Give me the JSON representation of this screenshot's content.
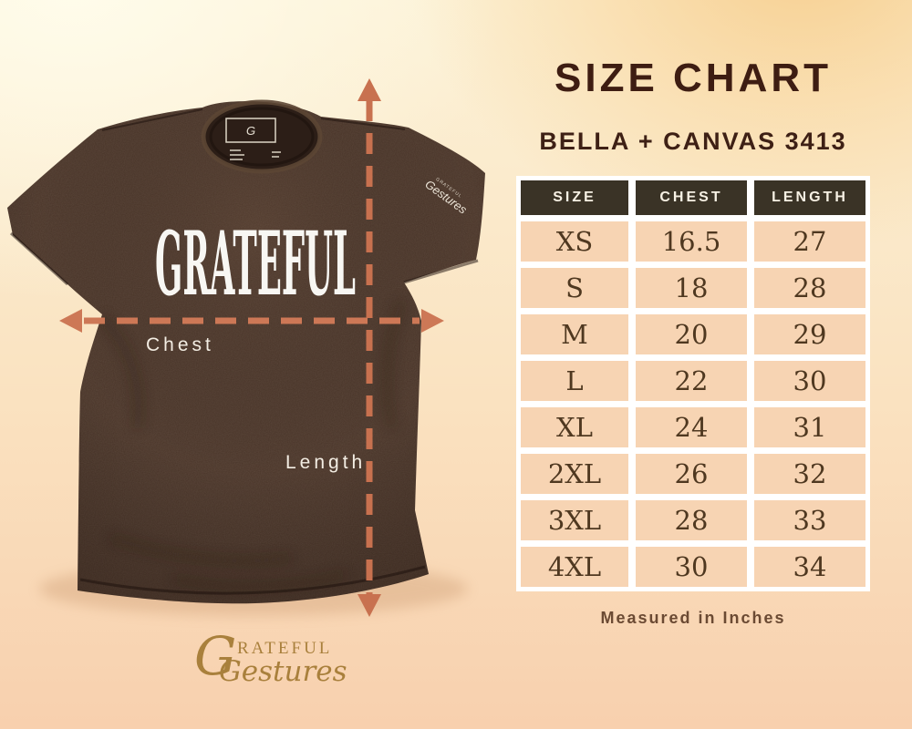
{
  "page": {
    "title": "SIZE CHART",
    "subtitle": "BELLA + CANVAS 3413",
    "footnote": "Measured in Inches"
  },
  "table": {
    "headers": [
      "SIZE",
      "CHEST",
      "LENGTH"
    ],
    "rows": [
      [
        "XS",
        "16.5",
        "27"
      ],
      [
        "S",
        "18",
        "28"
      ],
      [
        "M",
        "20",
        "29"
      ],
      [
        "L",
        "22",
        "30"
      ],
      [
        "XL",
        "24",
        "31"
      ],
      [
        "2XL",
        "26",
        "32"
      ],
      [
        "3XL",
        "28",
        "33"
      ],
      [
        "4XL",
        "30",
        "34"
      ]
    ]
  },
  "shirt": {
    "print": "GRATEFUL",
    "chest_label": "Chest",
    "length_label": "Length",
    "tag_monogram": "G",
    "sleeve_caps": "GRATEFUL",
    "sleeve_script": "Gestures"
  },
  "brand": {
    "monogram": "G",
    "caps": "RATEFUL",
    "script": "Gestures"
  },
  "colors": {
    "accent_arrow": "#cd7856",
    "shirt_brown": "#4a3529",
    "table_header_bg": "#3a3326",
    "table_cell_bg": "#f7d4b3",
    "title_text": "#3e1d12",
    "logo_gold": "#a9803c"
  },
  "chart_data": {
    "type": "table",
    "title": "SIZE CHART",
    "subtitle": "BELLA + CANVAS 3413",
    "columns": [
      "SIZE",
      "CHEST",
      "LENGTH"
    ],
    "rows": [
      [
        "XS",
        16.5,
        27
      ],
      [
        "S",
        18,
        28
      ],
      [
        "M",
        20,
        29
      ],
      [
        "L",
        22,
        30
      ],
      [
        "XL",
        24,
        31
      ],
      [
        "2XL",
        26,
        32
      ],
      [
        "3XL",
        28,
        33
      ],
      [
        "4XL",
        30,
        34
      ]
    ],
    "units": "Measured in Inches"
  }
}
